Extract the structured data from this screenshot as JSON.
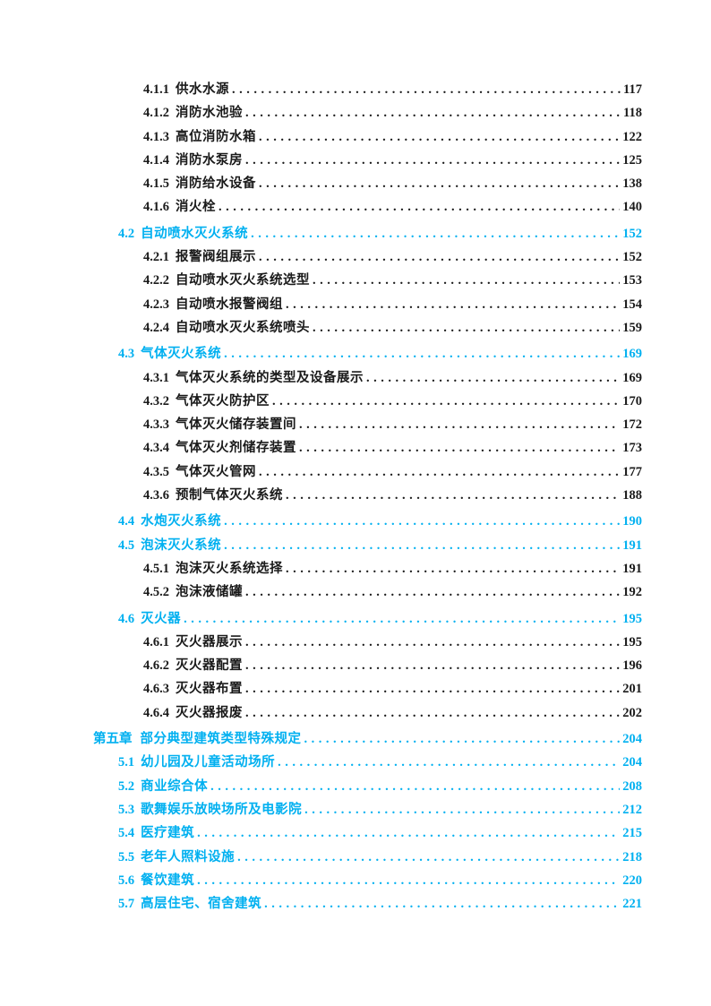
{
  "document": {
    "kind": "table-of-contents-page",
    "language": "zh-CN"
  },
  "colors": {
    "accent": "#00B0F0",
    "body_text": "#1a1a1a",
    "page_background": "#ffffff"
  },
  "toc_entries": [
    {
      "number": "4.1.1",
      "title": "供水水源",
      "page": "117",
      "level": "subsection"
    },
    {
      "number": "4.1.2",
      "title": "消防水池验",
      "page": "118",
      "level": "subsection"
    },
    {
      "number": "4.1.3",
      "title": "高位消防水箱",
      "page": "122",
      "level": "subsection"
    },
    {
      "number": "4.1.4",
      "title": "消防水泵房",
      "page": "125",
      "level": "subsection"
    },
    {
      "number": "4.1.5",
      "title": "消防给水设备",
      "page": "138",
      "level": "subsection"
    },
    {
      "number": "4.1.6",
      "title": "消火栓",
      "page": "140",
      "level": "subsection"
    },
    {
      "number": "4.2",
      "title": "自动喷水灭火系统",
      "page": "152",
      "level": "section"
    },
    {
      "number": "4.2.1",
      "title": "报警阀组展示",
      "page": "152",
      "level": "subsection"
    },
    {
      "number": "4.2.2",
      "title": "自动喷水灭火系统选型",
      "page": "153",
      "level": "subsection"
    },
    {
      "number": "4.2.3",
      "title": "自动喷水报警阀组",
      "page": "154",
      "level": "subsection"
    },
    {
      "number": "4.2.4",
      "title": "自动喷水灭火系统喷头",
      "page": "159",
      "level": "subsection"
    },
    {
      "number": "4.3",
      "title": "气体灭火系统",
      "page": "169",
      "level": "section"
    },
    {
      "number": "4.3.1",
      "title": "气体灭火系统的类型及设备展示",
      "page": "169",
      "level": "subsection"
    },
    {
      "number": "4.3.2",
      "title": "气体灭火防护区",
      "page": "170",
      "level": "subsection"
    },
    {
      "number": "4.3.3",
      "title": "气体灭火储存装置间",
      "page": "172",
      "level": "subsection"
    },
    {
      "number": "4.3.4",
      "title": "气体灭火剂储存装置",
      "page": "173",
      "level": "subsection"
    },
    {
      "number": "4.3.5",
      "title": "气体灭火管网",
      "page": "177",
      "level": "subsection"
    },
    {
      "number": "4.3.6",
      "title": "预制气体灭火系统",
      "page": "188",
      "level": "subsection"
    },
    {
      "number": "4.4",
      "title": "水炮灭火系统",
      "page": "190",
      "level": "section"
    },
    {
      "number": "4.5",
      "title": "泡沫灭火系统",
      "page": "191",
      "level": "section"
    },
    {
      "number": "4.5.1",
      "title": "泡沫灭火系统选择",
      "page": "191",
      "level": "subsection"
    },
    {
      "number": "4.5.2",
      "title": "泡沫液储罐",
      "page": "192",
      "level": "subsection"
    },
    {
      "number": "4.6",
      "title": "灭火器",
      "page": "195",
      "level": "section"
    },
    {
      "number": "4.6.1",
      "title": "灭火器展示",
      "page": "195",
      "level": "subsection"
    },
    {
      "number": "4.6.2",
      "title": "灭火器配置",
      "page": "196",
      "level": "subsection"
    },
    {
      "number": "4.6.3",
      "title": "灭火器布置",
      "page": "201",
      "level": "subsection"
    },
    {
      "number": "4.6.4",
      "title": "灭火器报废",
      "page": "202",
      "level": "subsection"
    },
    {
      "number": "第五章",
      "title": "部分典型建筑类型特殊规定",
      "page": "204",
      "level": "chapter"
    },
    {
      "number": "5.1",
      "title": "幼儿园及儿童活动场所",
      "page": "204",
      "level": "section"
    },
    {
      "number": "5.2",
      "title": "商业综合体",
      "page": "208",
      "level": "section"
    },
    {
      "number": "5.3",
      "title": "歌舞娱乐放映场所及电影院",
      "page": "212",
      "level": "section"
    },
    {
      "number": "5.4",
      "title": "医疗建筑",
      "page": "215",
      "level": "section"
    },
    {
      "number": "5.5",
      "title": "老年人照料设施",
      "page": "218",
      "level": "section"
    },
    {
      "number": "5.6",
      "title": "餐饮建筑",
      "page": "220",
      "level": "section"
    },
    {
      "number": "5.7",
      "title": "高层住宅、宿舍建筑",
      "page": "221",
      "level": "section"
    }
  ]
}
